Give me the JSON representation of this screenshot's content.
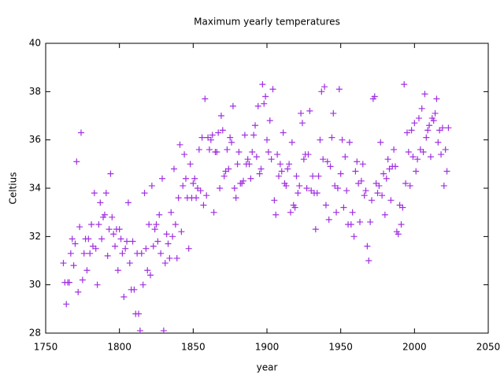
{
  "chart_data": {
    "type": "scatter",
    "title": "Maximum yearly temperatures",
    "xlabel": "year",
    "ylabel": "Celtius",
    "xlim": [
      1750,
      2050
    ],
    "xticks": [
      1750,
      1800,
      1850,
      1900,
      1950,
      2000,
      2050
    ],
    "ylim": [
      28,
      40
    ],
    "yticks": [
      28,
      30,
      32,
      34,
      36,
      38,
      40
    ],
    "series": [
      {
        "color": "#a030e0",
        "x": [
          1762,
          1763,
          1764,
          1765,
          1766,
          1767,
          1768,
          1769,
          1770,
          1771,
          1772,
          1773,
          1774,
          1775,
          1776,
          1777,
          1778,
          1779,
          1780,
          1781,
          1782,
          1783,
          1784,
          1785,
          1786,
          1787,
          1788,
          1789,
          1790,
          1791,
          1792,
          1793,
          1794,
          1795,
          1796,
          1797,
          1798,
          1799,
          1800,
          1801,
          1802,
          1803,
          1804,
          1805,
          1806,
          1807,
          1808,
          1809,
          1810,
          1811,
          1812,
          1813,
          1814,
          1815,
          1816,
          1817,
          1818,
          1819,
          1820,
          1821,
          1822,
          1823,
          1824,
          1825,
          1826,
          1827,
          1828,
          1829,
          1830,
          1831,
          1832,
          1833,
          1834,
          1835,
          1836,
          1837,
          1838,
          1839,
          1840,
          1841,
          1842,
          1843,
          1844,
          1845,
          1846,
          1847,
          1848,
          1849,
          1850,
          1851,
          1852,
          1853,
          1854,
          1855,
          1856,
          1857,
          1858,
          1859,
          1860,
          1861,
          1862,
          1863,
          1864,
          1865,
          1866,
          1867,
          1868,
          1869,
          1870,
          1871,
          1872,
          1873,
          1874,
          1875,
          1876,
          1877,
          1878,
          1879,
          1880,
          1881,
          1882,
          1883,
          1884,
          1885,
          1886,
          1887,
          1888,
          1889,
          1890,
          1891,
          1892,
          1893,
          1894,
          1895,
          1896,
          1897,
          1898,
          1899,
          1900,
          1901,
          1902,
          1903,
          1904,
          1905,
          1906,
          1907,
          1908,
          1909,
          1910,
          1911,
          1912,
          1913,
          1914,
          1915,
          1916,
          1917,
          1918,
          1919,
          1920,
          1921,
          1922,
          1923,
          1924,
          1925,
          1926,
          1927,
          1928,
          1929,
          1930,
          1931,
          1932,
          1933,
          1934,
          1935,
          1936,
          1937,
          1938,
          1939,
          1940,
          1941,
          1942,
          1943,
          1944,
          1945,
          1946,
          1947,
          1948,
          1949,
          1950,
          1951,
          1952,
          1953,
          1954,
          1955,
          1956,
          1957,
          1958,
          1959,
          1960,
          1961,
          1962,
          1963,
          1964,
          1965,
          1966,
          1967,
          1968,
          1969,
          1970,
          1971,
          1972,
          1973,
          1974,
          1975,
          1976,
          1977,
          1978,
          1979,
          1980,
          1981,
          1982,
          1983,
          1984,
          1985,
          1986,
          1987,
          1988,
          1989,
          1990,
          1991,
          1992,
          1993,
          1994,
          1995,
          1996,
          1997,
          1998,
          1999,
          2000,
          2001,
          2002,
          2003,
          2004,
          2005,
          2006,
          2007,
          2008,
          2009,
          2010,
          2011,
          2012,
          2013,
          2014,
          2015,
          2016,
          2017,
          2018,
          2019,
          2020,
          2021,
          2022,
          2023
        ],
        "values": [
          30.9,
          30.1,
          29.2,
          30.1,
          30.1,
          31.3,
          31.9,
          30.8,
          31.7,
          35.1,
          29.7,
          32.4,
          36.3,
          30.2,
          31.3,
          31.9,
          30.6,
          31.9,
          31.3,
          32.5,
          31.6,
          33.8,
          31.5,
          30.0,
          32.5,
          33.4,
          31.9,
          32.8,
          32.9,
          33.8,
          31.2,
          32.3,
          34.6,
          32.8,
          32.1,
          31.6,
          32.3,
          30.6,
          32.3,
          31.9,
          31.3,
          29.5,
          31.5,
          31.8,
          33.4,
          30.9,
          29.8,
          31.8,
          29.8,
          28.8,
          31.3,
          28.8,
          28.1,
          31.3,
          30.0,
          33.8,
          31.5,
          30.6,
          32.5,
          30.4,
          34.1,
          31.6,
          32.3,
          32.5,
          31.8,
          32.9,
          31.3,
          34.4,
          28.1,
          30.9,
          32.1,
          31.7,
          31.1,
          33.0,
          32.0,
          34.8,
          32.5,
          31.1,
          33.6,
          35.8,
          32.2,
          34.1,
          35.4,
          34.4,
          33.6,
          31.5,
          35.0,
          33.6,
          34.2,
          34.4,
          33.6,
          34.0,
          35.6,
          33.9,
          36.1,
          33.3,
          37.7,
          33.7,
          36.1,
          35.6,
          36.0,
          36.2,
          33.0,
          35.5,
          35.5,
          36.3,
          34.0,
          37.0,
          36.4,
          34.5,
          34.7,
          35.6,
          34.8,
          36.1,
          35.9,
          37.4,
          34.0,
          33.6,
          35.0,
          35.5,
          34.2,
          34.2,
          34.3,
          36.2,
          35.0,
          35.2,
          35.0,
          34.4,
          35.5,
          36.2,
          36.6,
          35.3,
          37.4,
          34.6,
          34.8,
          38.3,
          37.5,
          37.8,
          36.0,
          35.5,
          36.8,
          35.2,
          38.1,
          33.5,
          32.9,
          35.4,
          34.5,
          35.0,
          34.7,
          36.3,
          34.2,
          34.1,
          34.8,
          35.0,
          33.0,
          35.9,
          33.3,
          33.2,
          34.5,
          33.8,
          34.1,
          37.1,
          36.7,
          35.2,
          35.4,
          34.0,
          35.4,
          37.2,
          33.9,
          34.5,
          33.8,
          32.3,
          33.8,
          34.5,
          36.0,
          38.0,
          35.2,
          38.2,
          33.3,
          35.1,
          32.7,
          34.9,
          36.1,
          37.1,
          34.1,
          33.0,
          34.0,
          38.1,
          34.6,
          36.0,
          33.2,
          35.3,
          33.9,
          32.5,
          35.9,
          32.5,
          33.0,
          32.0,
          34.7,
          35.1,
          34.2,
          32.6,
          34.3,
          35.0,
          33.7,
          33.9,
          31.6,
          31.0,
          32.6,
          33.5,
          37.7,
          37.8,
          34.2,
          33.8,
          34.1,
          35.9,
          33.7,
          34.6,
          32.9,
          34.4,
          35.2,
          34.8,
          33.5,
          34.9,
          35.6,
          34.9,
          32.2,
          32.1,
          33.3,
          32.5,
          33.2,
          38.3,
          34.2,
          36.3,
          35.5,
          34.1,
          36.4,
          35.3,
          36.7,
          34.7,
          35.2,
          36.9,
          35.6,
          37.3,
          35.5,
          37.9,
          36.1,
          36.4,
          36.6,
          35.3,
          36.9,
          36.8,
          37.1,
          37.7,
          35.9,
          36.4,
          35.4,
          36.5,
          34.1,
          35.6,
          34.7,
          36.5
        ]
      }
    ]
  }
}
